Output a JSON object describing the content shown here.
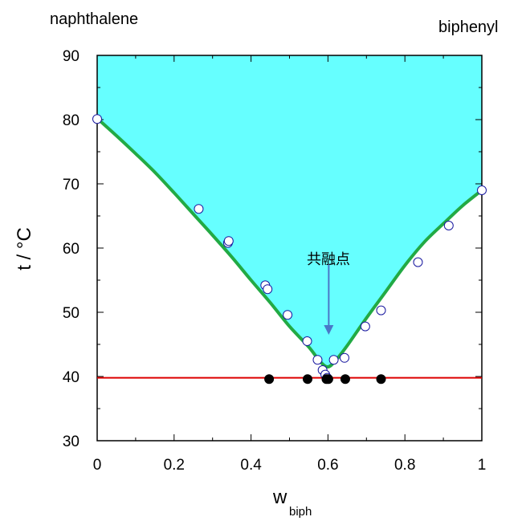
{
  "chart_data": {
    "type": "scatter",
    "labels": {
      "left_component": "naphthalene",
      "right_component": "biphenyl",
      "annotation": "共融点"
    },
    "xlabel": {
      "main": "w",
      "subscript": "biph"
    },
    "ylabel": "t / °C",
    "xlim": [
      0,
      1
    ],
    "ylim": [
      30,
      90
    ],
    "xticks": [
      "0",
      "0.2",
      "0.4",
      "0.6",
      "0.8",
      "1"
    ],
    "yticks": [
      "30",
      "40",
      "50",
      "60",
      "70",
      "80",
      "90"
    ],
    "grid": false,
    "liquid_region_color": "#66ffff",
    "series": [
      {
        "kind": "liquidus_curve",
        "color": "#22aa44",
        "x": [
          0,
          0.05,
          0.1,
          0.15,
          0.2,
          0.25,
          0.3,
          0.35,
          0.4,
          0.45,
          0.5,
          0.55,
          0.58,
          0.6,
          0.62,
          0.65,
          0.7,
          0.75,
          0.8,
          0.85,
          0.9,
          0.95,
          1.0
        ],
        "y": [
          80.2,
          77.5,
          74.7,
          71.8,
          68.6,
          65.3,
          62.0,
          58.6,
          55.0,
          51.5,
          47.8,
          44.6,
          42.3,
          41.5,
          42.5,
          44.8,
          49.1,
          53.2,
          57.3,
          60.9,
          63.8,
          66.6,
          69.0
        ]
      },
      {
        "kind": "eutectic_line",
        "color": "#dd0000",
        "x": [
          0,
          1
        ],
        "y": [
          39.8,
          39.8
        ]
      },
      {
        "kind": "open_points",
        "marker_color": "#ffffff",
        "edge_color": "#1a1aa0",
        "x": [
          0,
          0.264,
          0.34,
          0.342,
          0.437,
          0.443,
          0.495,
          0.546,
          0.573,
          0.586,
          0.593,
          0.598,
          0.615,
          0.643,
          0.697,
          0.738,
          0.834,
          0.914,
          1.0
        ],
        "y": [
          80.1,
          66.1,
          60.8,
          61.1,
          54.2,
          53.6,
          49.6,
          45.5,
          42.6,
          41.0,
          40.3,
          39.8,
          42.6,
          42.9,
          47.8,
          50.3,
          57.8,
          63.5,
          69.0
        ]
      },
      {
        "kind": "filled_points",
        "marker_color": "#000000",
        "x": [
          0.447,
          0.547,
          0.596,
          0.601,
          0.645,
          0.738
        ],
        "y": [
          39.6,
          39.6,
          39.6,
          39.6,
          39.6,
          39.6
        ]
      }
    ],
    "annotation_arrow": {
      "x": 0.602,
      "y_from": 57.5,
      "y_to": 46.5,
      "color": "#4a78c8"
    }
  }
}
